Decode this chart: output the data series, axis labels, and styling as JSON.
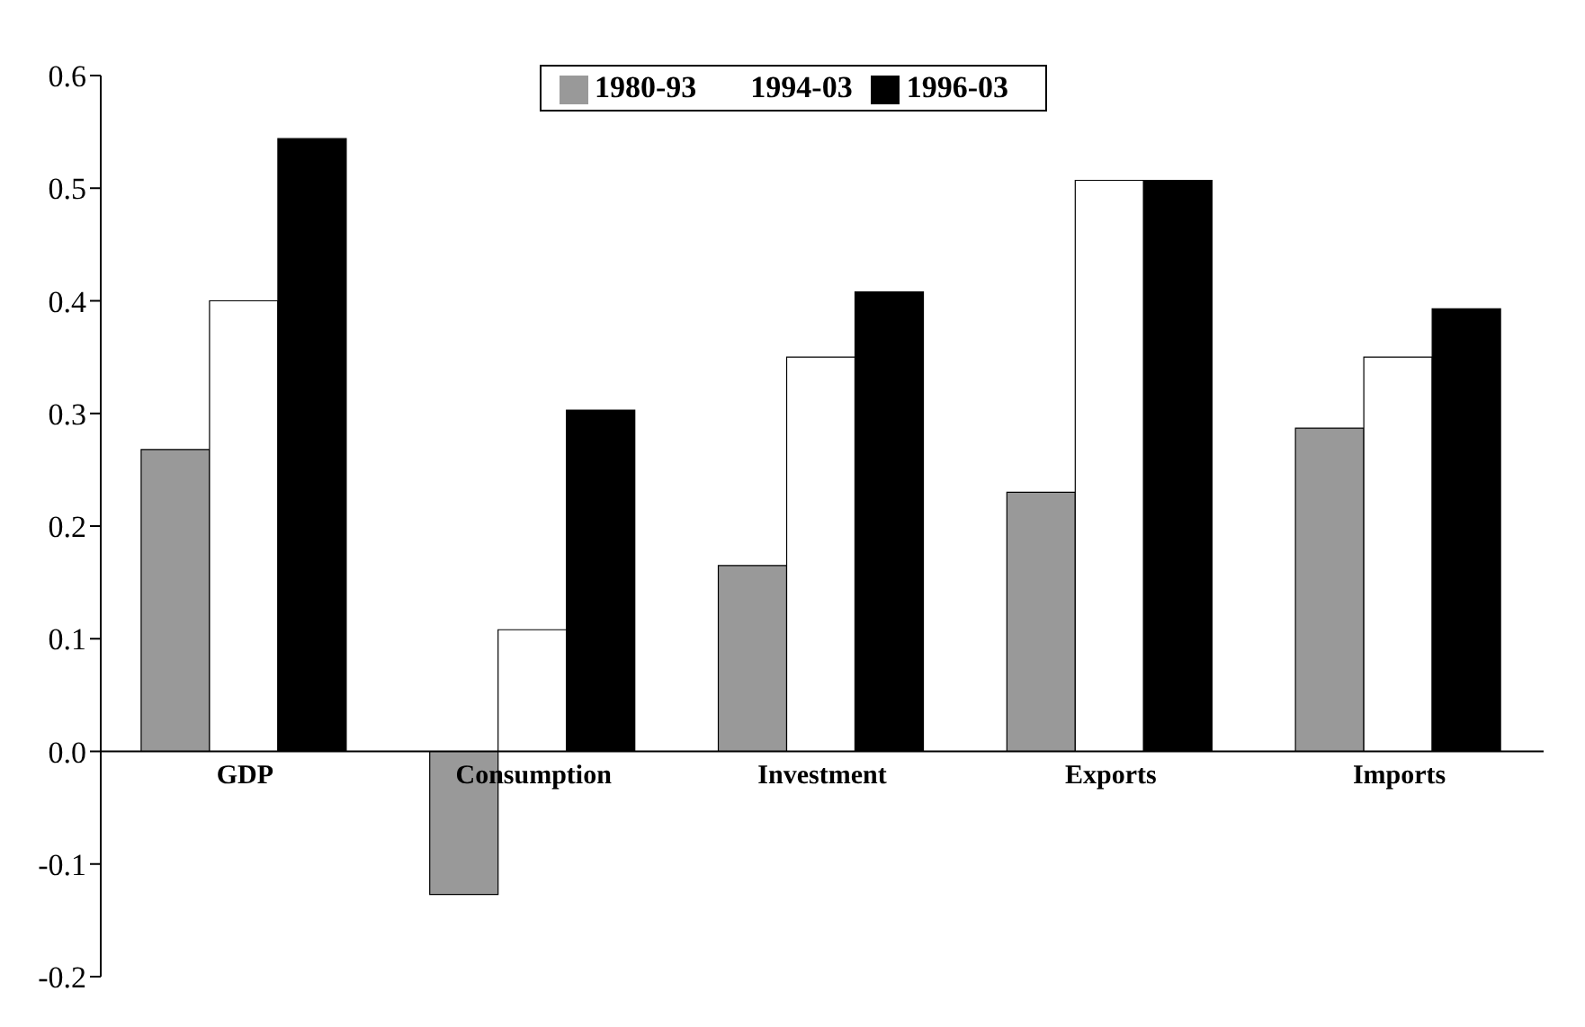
{
  "chart_data": {
    "type": "bar",
    "categories": [
      "GDP",
      "Consumption",
      "Investment",
      "Exports",
      "Imports"
    ],
    "series": [
      {
        "name": "1980-93",
        "color": "#999999",
        "values": [
          0.268,
          -0.127,
          0.165,
          0.23,
          0.287
        ]
      },
      {
        "name": "1994-03",
        "color": "#ffffff",
        "values": [
          0.4,
          0.108,
          0.35,
          0.507,
          0.35
        ]
      },
      {
        "name": "1996-03",
        "color": "#000000",
        "values": [
          0.544,
          0.303,
          0.408,
          0.507,
          0.393
        ]
      }
    ],
    "ylim": [
      -0.2,
      0.6
    ],
    "yticks": [
      -0.2,
      -0.1,
      {
        "value": 0,
        "label": "0.0"
      },
      0.1,
      0.2,
      0.3,
      0.4,
      0.5,
      0.6
    ],
    "grid": false,
    "legend": "top"
  }
}
